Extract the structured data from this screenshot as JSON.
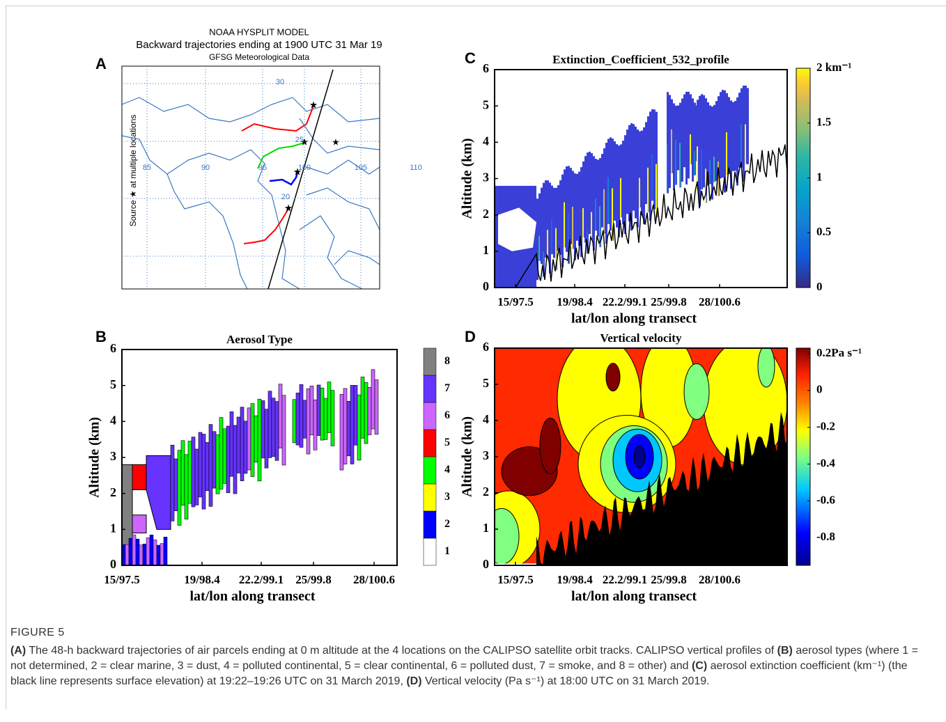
{
  "figure": {
    "panel_a": {
      "letter": "A",
      "title": [
        "NOAA HYSPLIT MODEL",
        "Backward trajectories ending at 1900 UTC 31 Mar 19",
        "GFSG Meteorological Data"
      ],
      "ylabel": "Source ★  at multiple locations",
      "lat_ticks": [
        30,
        25,
        20
      ],
      "lon_ticks": [
        85,
        90,
        95,
        100,
        105,
        110
      ]
    },
    "panel_b": {
      "letter": "B",
      "title": "Aerosol Type",
      "ylabel": "Altitude (km)",
      "xlabel": "lat/lon along transect",
      "xticks": [
        "15/97.5",
        "19/98.4",
        "22.2/99.1",
        "25/99.8",
        "28/100.6"
      ],
      "ylim": [
        0,
        6
      ],
      "yticks": [
        0,
        1,
        2,
        3,
        4,
        5,
        6
      ],
      "colorbar": {
        "labels": [
          1,
          2,
          3,
          4,
          5,
          6,
          7,
          8
        ],
        "colors": [
          "#ffffff",
          "#0000ff",
          "#ffff00",
          "#00ff00",
          "#ff0000",
          "#cc66ff",
          "#6633ff",
          "#808080"
        ]
      }
    },
    "panel_c": {
      "letter": "C",
      "title": "Extinction_Coefficient_532_profile",
      "ylabel": "Altitude (km)",
      "xlabel": "lat/lon along transect",
      "xticks": [
        "15/97.5",
        "19/98.4",
        "22.2/99.1",
        "25/99.8",
        "28/100.6"
      ],
      "ylim": [
        0,
        6
      ],
      "yticks": [
        0,
        1,
        2,
        3,
        4,
        5,
        6
      ],
      "colorbar": {
        "lim": [
          0,
          2
        ],
        "ticks": [
          {
            "value": 2,
            "label": "2 km⁻¹"
          },
          1.5,
          1,
          0.5,
          0
        ]
      }
    },
    "panel_d": {
      "letter": "D",
      "title": "Vertical velocity",
      "ylabel": "Altitude (km)",
      "xlabel": "lat/lon along transect",
      "xticks": [
        "15/97.5",
        "19/98.4",
        "22.2/99.1",
        "25/99.8",
        "28/100.6"
      ],
      "ylim": [
        0,
        6
      ],
      "yticks": [
        0,
        1,
        2,
        3,
        4,
        5,
        6
      ],
      "colorbar": {
        "lim": [
          -0.95,
          0.23
        ],
        "ticks": [
          {
            "value": 0.2,
            "label": "0.2Pa s⁻¹"
          },
          0,
          -0.2,
          -0.4,
          -0.6,
          -0.8
        ]
      }
    },
    "caption": {
      "label": "FIGURE 5",
      "parts": [
        {
          "text": "(A)",
          "bold": true
        },
        " The 48-h backward trajectories of air parcels ending at 0 m altitude at the 4 locations on the CALIPSO satellite orbit tracks. CALIPSO vertical profiles of ",
        {
          "text": "(B)",
          "bold": true
        },
        " aerosol types (where 1 = not determined, 2 = clear marine, 3 = dust, 4 = polluted continental, 5 = clear continental, 6 = polluted dust, 7 = smoke, and 8 = other) and ",
        {
          "text": "(C)",
          "bold": true
        },
        " aerosol extinction coefficient (km⁻¹) (the black line represents surface elevation) at 19:22–19:26 UTC on 31 March 2019, ",
        {
          "text": "(D)",
          "bold": true
        },
        " Vertical velocity (Pa s⁻¹) at 18:00 UTC on 31 March 2019."
      ]
    }
  }
}
